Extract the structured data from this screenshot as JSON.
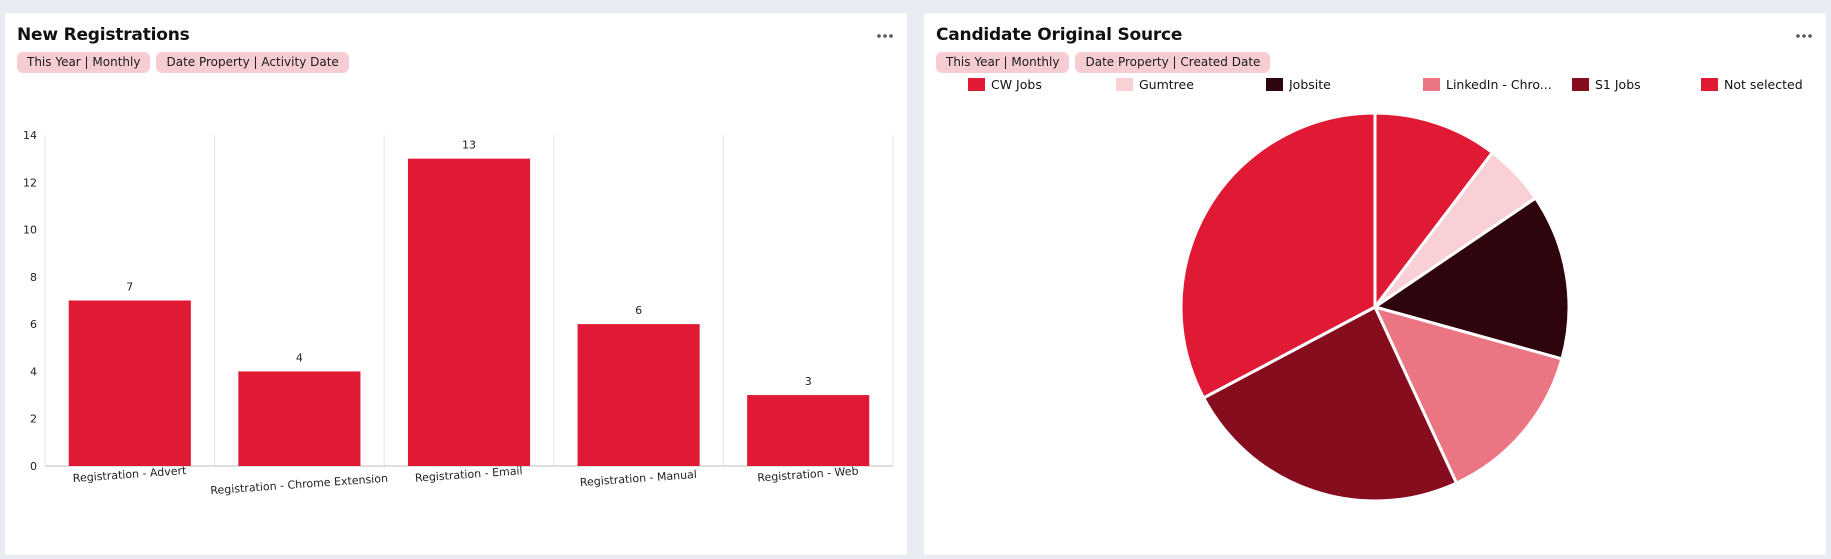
{
  "colors": {
    "bar": "#e01934",
    "pill_bg": "#f7cdd3",
    "background": "#e9ecf3"
  },
  "left_card": {
    "title": "New Registrations",
    "pills": [
      "This Year | Monthly",
      "Date Property | Activity Date"
    ],
    "menu_icon": "more-horizontal-icon"
  },
  "right_card": {
    "title": "Candidate Original Source",
    "pills": [
      "This Year | Monthly",
      "Date Property | Created Date"
    ],
    "menu_icon": "more-horizontal-icon"
  },
  "chart_data": [
    {
      "type": "bar",
      "title": "New Registrations",
      "categories": [
        "Registration - Advert",
        "Registration - Chrome Extension",
        "Registration - Email",
        "Registration - Manual",
        "Registration - Web"
      ],
      "values": [
        7,
        4,
        13,
        6,
        3
      ],
      "data_labels": [
        "7",
        "4",
        "13",
        "6",
        "3"
      ],
      "ylim": [
        0,
        14
      ],
      "yticks": [
        "0",
        "2",
        "4",
        "6",
        "8",
        "10",
        "12",
        "14"
      ],
      "grid": "vertical category separators",
      "color": "#e01934"
    },
    {
      "type": "pie",
      "title": "Candidate Original Source",
      "legend_position": "top",
      "labels": [
        "CW Jobs",
        "Gumtree",
        "Jobsite",
        "LinkedIn - Chro...",
        "S1 Jobs",
        "Not selected"
      ],
      "values": [
        3,
        1.5,
        4,
        4,
        7,
        9.5
      ],
      "colors": [
        "#e01934",
        "#f8d0d6",
        "#2e050c",
        "#ec7584",
        "#860d1e",
        "#e01934"
      ]
    }
  ]
}
